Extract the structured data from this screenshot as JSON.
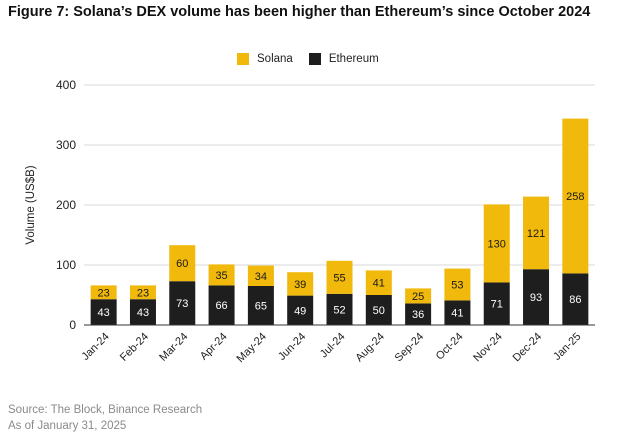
{
  "title": "Figure 7: Solana’s DEX volume has been higher than Ethereum’s since October 2024",
  "source": {
    "line1": "Source: The Block, Binance Research",
    "line2": "As of January 31, 2025"
  },
  "colors": {
    "solana": "#F0B90B",
    "ethereum": "#1E1E1E",
    "grid": "#D9D9D9",
    "axis": "#333333"
  },
  "chart_data": {
    "type": "bar",
    "stacked": true,
    "categories": [
      "Jan-24",
      "Feb-24",
      "Mar-24",
      "Apr-24",
      "May-24",
      "Jun-24",
      "Jul-24",
      "Aug-24",
      "Sep-24",
      "Oct-24",
      "Nov-24",
      "Dec-24",
      "Jan-25"
    ],
    "series": [
      {
        "name": "Ethereum",
        "color": "#1E1E1E",
        "label_color": "#FFFFFF",
        "values": [
          43,
          43,
          73,
          66,
          65,
          49,
          52,
          50,
          36,
          41,
          71,
          93,
          86
        ]
      },
      {
        "name": "Solana",
        "color": "#F0B90B",
        "label_color": "#1A1A1A",
        "values": [
          23,
          23,
          60,
          35,
          34,
          39,
          55,
          41,
          25,
          53,
          130,
          121,
          258
        ]
      }
    ],
    "legend_order": [
      "Solana",
      "Ethereum"
    ],
    "legend_position": "top-center",
    "ylabel": "Volume (US$B)",
    "xlabel": "",
    "ylim": [
      0,
      400
    ],
    "yticks": [
      0,
      100,
      200,
      300,
      400
    ],
    "grid": true
  }
}
